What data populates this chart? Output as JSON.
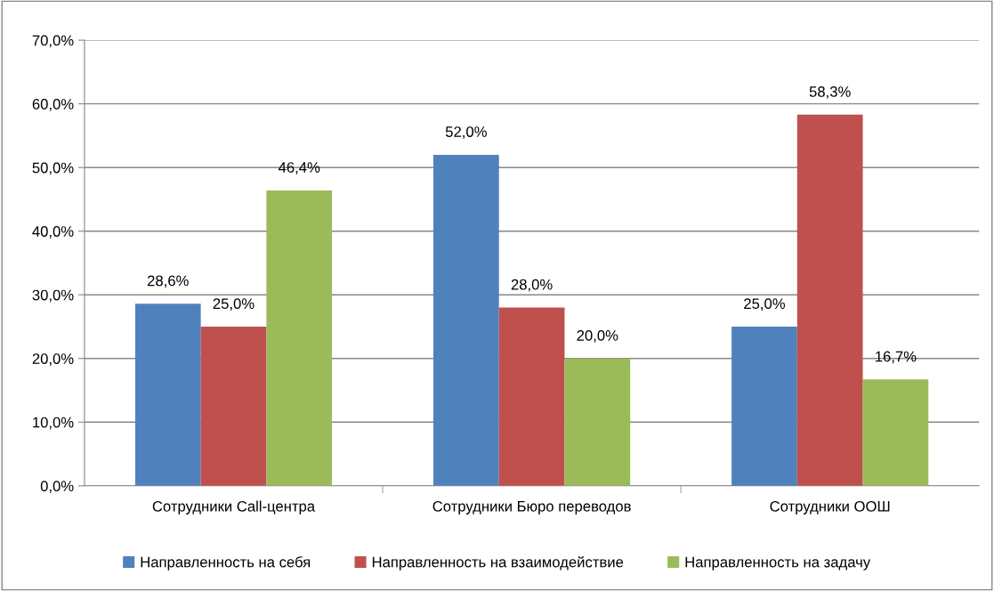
{
  "chart_data": {
    "type": "bar",
    "categories": [
      "Сотрудники Call-центра",
      "Сотрудники Бюро переводов",
      "Сотрудники ООШ"
    ],
    "series": [
      {
        "name": "Направленность на себя",
        "color": "#4f81bd",
        "values": [
          28.6,
          52.0,
          25.0
        ],
        "value_labels": [
          "28,6%",
          "52,0%",
          "25,0%"
        ]
      },
      {
        "name": "Направленность на взаимодействие",
        "color": "#c0504d",
        "values": [
          25.0,
          28.0,
          58.3
        ],
        "value_labels": [
          "25,0%",
          "28,0%",
          "58,3%"
        ]
      },
      {
        "name": "Направленность на задачу",
        "color": "#9bbb59",
        "values": [
          46.4,
          20.0,
          16.7
        ],
        "value_labels": [
          "46,4%",
          "20,0%",
          "16,7%"
        ]
      }
    ],
    "ylim": [
      0,
      70
    ],
    "yticks": [
      {
        "value": 0,
        "label": "0,0%"
      },
      {
        "value": 10,
        "label": "10,0%"
      },
      {
        "value": 20,
        "label": "20,0%"
      },
      {
        "value": 30,
        "label": "30,0%"
      },
      {
        "value": 40,
        "label": "40,0%"
      },
      {
        "value": 50,
        "label": "50,0%"
      },
      {
        "value": 60,
        "label": "60,0%"
      },
      {
        "value": 70,
        "label": "70,0%"
      }
    ],
    "grid": "y",
    "legend": "bottom"
  }
}
